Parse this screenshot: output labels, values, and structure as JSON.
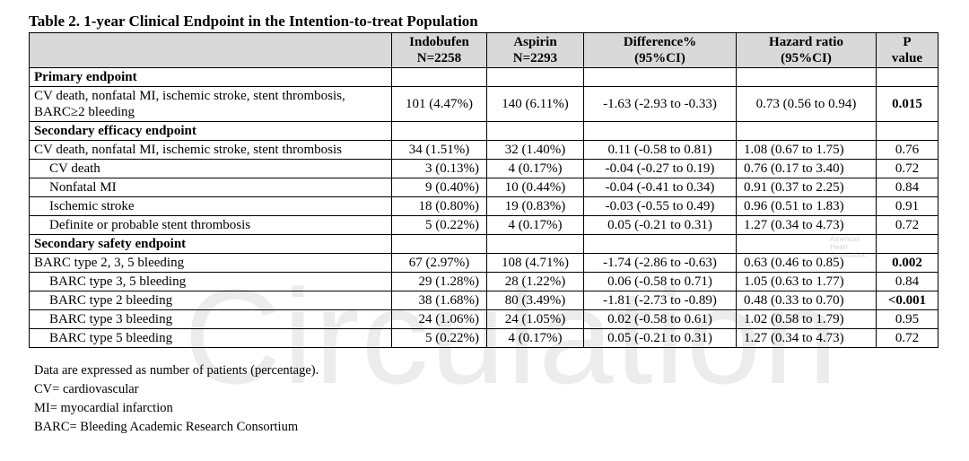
{
  "title": "Table 2. 1-year Clinical Endpoint in the Intention-to-treat Population",
  "headers": {
    "col1_line1": "Indobufen",
    "col1_line2": "N=2258",
    "col2_line1": "Aspirin",
    "col2_line2": "N=2293",
    "col3_line1": "Difference%",
    "col3_line2": "(95%CI)",
    "col4_line1": "Hazard ratio",
    "col4_line2": "(95%CI)",
    "col5_line1": "P",
    "col5_line2": "value"
  },
  "sections": {
    "primary": "Primary endpoint",
    "efficacy": "Secondary efficacy endpoint",
    "safety": "Secondary safety endpoint"
  },
  "rows": [
    {
      "label": "CV death, nonfatal MI, ischemic stroke, stent thrombosis, BARC≥2 bleeding",
      "indobufen": "101 (4.47%)",
      "aspirin": "140 (6.11%)",
      "difference": "-1.63 (-2.93 to -0.33)",
      "hr": "0.73 (0.56 to 0.94)",
      "p": "0.015"
    },
    {
      "label": "CV death, nonfatal MI, ischemic stroke, stent thrombosis",
      "indobufen": "34 (1.51%)",
      "aspirin": "32 (1.40%)",
      "difference": "0.11 (-0.58 to 0.81)",
      "hr": "1.08 (0.67 to 1.75)",
      "p": "0.76"
    },
    {
      "label": "CV death",
      "indobufen": "3 (0.13%)",
      "aspirin": "4 (0.17%)",
      "difference": "-0.04 (-0.27 to 0.19)",
      "hr": "0.76 (0.17 to 3.40)",
      "p": "0.72"
    },
    {
      "label": "Nonfatal MI",
      "indobufen": "9 (0.40%)",
      "aspirin": "10 (0.44%)",
      "difference": "-0.04 (-0.41 to 0.34)",
      "hr": "0.91 (0.37 to 2.25)",
      "p": "0.84"
    },
    {
      "label": "Ischemic stroke",
      "indobufen": "18 (0.80%)",
      "aspirin": "19 (0.83%)",
      "difference": "-0.03 (-0.55 to 0.49)",
      "hr": "0.96 (0.51 to 1.83)",
      "p": "0.91"
    },
    {
      "label": "Definite or probable stent thrombosis",
      "indobufen": "5 (0.22%)",
      "aspirin": "4 (0.17%)",
      "difference": "0.05 (-0.21 to 0.31)",
      "hr": "1.27 (0.34 to 4.73)",
      "p": "0.72"
    },
    {
      "label": "BARC type 2, 3, 5 bleeding",
      "indobufen": "67 (2.97%)",
      "aspirin": "108 (4.71%)",
      "difference": "-1.74 (-2.86 to -0.63)",
      "hr": "0.63 (0.46 to 0.85)",
      "p": "0.002"
    },
    {
      "label": "BARC type 3, 5 bleeding",
      "indobufen": "29 (1.28%)",
      "aspirin": "28 (1.22%)",
      "difference": "0.06 (-0.58 to 0.71)",
      "hr": "1.05 (0.63 to 1.77)",
      "p": "0.84"
    },
    {
      "label": "BARC type 2 bleeding",
      "indobufen": "38 (1.68%)",
      "aspirin": "80 (3.49%)",
      "difference": "-1.81 (-2.73 to -0.89)",
      "hr": "0.48 (0.33 to 0.70)",
      "p": "<0.001"
    },
    {
      "label": "BARC type 3 bleeding",
      "indobufen": "24 (1.06%)",
      "aspirin": "24 (1.05%)",
      "difference": "0.02 (-0.58 to 0.61)",
      "hr": "1.02 (0.58 to 1.79)",
      "p": "0.95"
    },
    {
      "label": "BARC type 5 bleeding",
      "indobufen": "5 (0.22%)",
      "aspirin": "4 (0.17%)",
      "difference": "0.05 (-0.21 to 0.31)",
      "hr": "1.27 (0.34 to 4.73)",
      "p": "0.72"
    }
  ],
  "notes": [
    "Data are expressed as number of patients (percentage).",
    "CV= cardiovascular",
    "MI= myocardial infarction",
    "BARC= Bleeding Academic Research Consortium"
  ],
  "watermark": "Circulation",
  "aha_mark": {
    "line1": "American",
    "line2": "Heart",
    "line3": "Association"
  },
  "colors": {
    "header_bg": "#d9d9d9",
    "text": "#000000",
    "watermark": "#000000"
  }
}
